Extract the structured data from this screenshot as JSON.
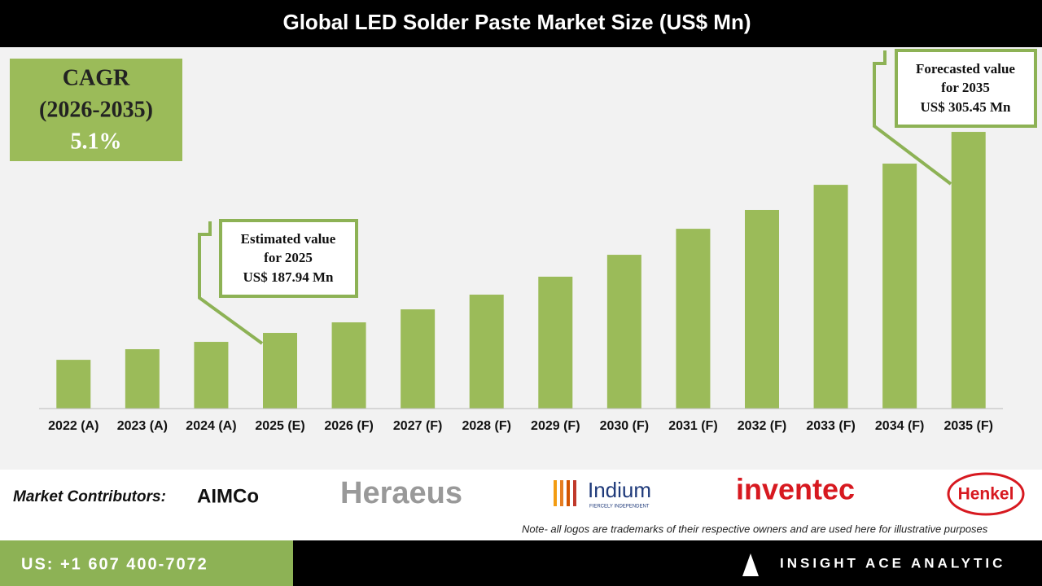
{
  "chart_data": {
    "type": "bar",
    "title": "Global LED Solder Paste Market Size (US$ Mn)",
    "categories": [
      "2022 (A)",
      "2023 (A)",
      "2024 (A)",
      "2025 (E)",
      "2026 (F)",
      "2027 (F)",
      "2028 (F)",
      "2029 (F)",
      "2030 (F)",
      "2031 (F)",
      "2032 (F)",
      "2033 (F)",
      "2034 (F)",
      "2035 (F)"
    ],
    "values": [
      172.2,
      178.4,
      182.7,
      187.94,
      194.1,
      201.7,
      210.3,
      220.8,
      233.6,
      248.8,
      259.8,
      274.5,
      286.9,
      305.45
    ],
    "color": "#9bbb59",
    "ylim": [
      143.7,
      354
    ],
    "annotations": [
      {
        "lines": [
          "Estimated value",
          "for 2025",
          "US$ 187.94 Mn"
        ]
      },
      {
        "lines": [
          "Forecasted value",
          "for 2035",
          "US$ 305.45 Mn"
        ]
      }
    ]
  },
  "cagr": {
    "lines": [
      "CAGR",
      "(2026-2035)",
      "5.1%"
    ]
  },
  "contributors": {
    "label": "Market Contributors:",
    "logos": [
      "AIMCo",
      "Heraeus",
      "Indium",
      "FIERCELY INDEPENDENT",
      "inventec",
      "Henkel"
    ]
  },
  "note": "Note- all logos are trademarks of their respective owners and are used here for illustrative purposes",
  "footer": {
    "phone": "US: +1 607 400-7072",
    "brand": "INSIGHT ACE ANALYTIC"
  }
}
